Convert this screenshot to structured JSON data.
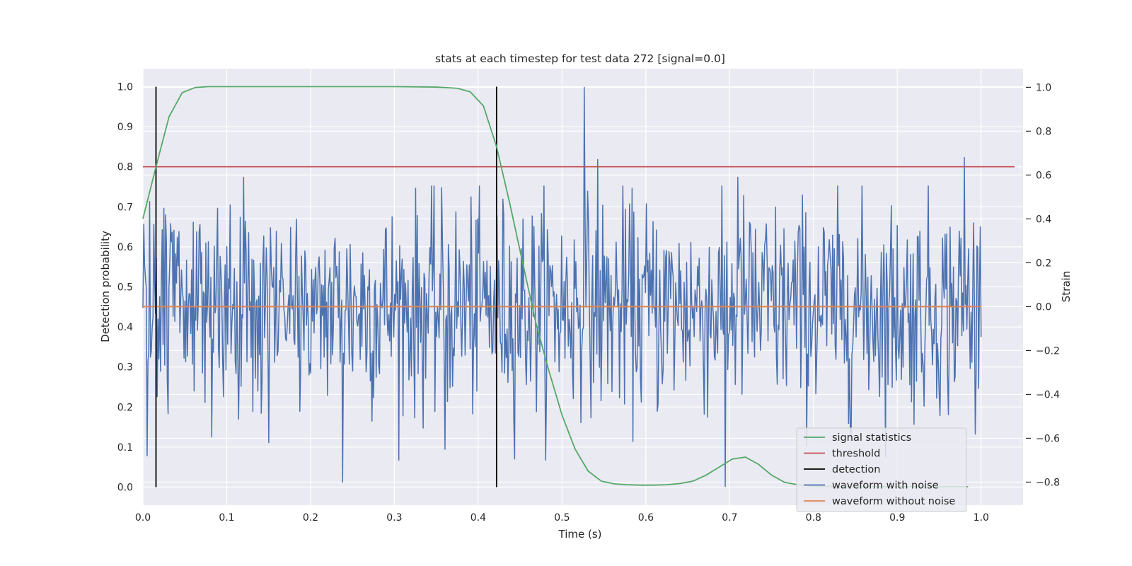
{
  "chart_data": {
    "type": "line",
    "title": "stats at each timestep for test data 272 [signal=0.0]",
    "xlabel": "Time (s)",
    "ylabel": "Detection probability",
    "y2label": "Strain",
    "xlim": [
      0.0,
      1.05
    ],
    "ylim": [
      -0.045,
      1.045
    ],
    "y2lim": [
      -0.905,
      1.085
    ],
    "x_ticks": [
      0.0,
      0.1,
      0.2,
      0.3,
      0.4,
      0.5,
      0.6,
      0.7,
      0.8,
      0.9,
      1.0
    ],
    "x_tick_labels": [
      "0.0",
      "0.1",
      "0.2",
      "0.3",
      "0.4",
      "0.5",
      "0.6",
      "0.7",
      "0.8",
      "0.9",
      "1.0"
    ],
    "y_ticks": [
      0.0,
      0.1,
      0.2,
      0.3,
      0.4,
      0.5,
      0.6,
      0.7,
      0.8,
      0.9,
      1.0
    ],
    "y_tick_labels": [
      "0.0",
      "0.1",
      "0.2",
      "0.3",
      "0.4",
      "0.5",
      "0.6",
      "0.7",
      "0.8",
      "0.9",
      "1.0"
    ],
    "y2_ticks": [
      -0.8,
      -0.6,
      -0.4,
      -0.2,
      0.0,
      0.2,
      0.4,
      0.6,
      0.8,
      1.0
    ],
    "y2_tick_labels": [
      "−0.8",
      "−0.6",
      "−0.4",
      "−0.2",
      "0.0",
      "0.2",
      "0.4",
      "0.6",
      "0.8",
      "1.0"
    ],
    "grid": true,
    "legend_position": "lower-right",
    "background": "#eaeaf2",
    "series": [
      {
        "name": "signal statistics",
        "axis": "left",
        "color": "#55a868",
        "x": [
          0.0,
          0.0156,
          0.0312,
          0.0469,
          0.0625,
          0.0781,
          0.1,
          0.2,
          0.3,
          0.35,
          0.375,
          0.3906,
          0.4062,
          0.4219,
          0.4375,
          0.4531,
          0.4688,
          0.4844,
          0.5,
          0.5156,
          0.5312,
          0.5469,
          0.5625,
          0.5781,
          0.5938,
          0.6094,
          0.625,
          0.6406,
          0.6562,
          0.6719,
          0.6875,
          0.7031,
          0.7188,
          0.7344,
          0.75,
          0.7656,
          0.7812,
          0.7969,
          0.8125,
          0.8281,
          0.8438,
          0.8594,
          0.875,
          0.8906,
          0.9062,
          0.9219,
          0.9375,
          0.9531,
          0.9688,
          0.9844
        ],
        "values": [
          0.67,
          0.8,
          0.925,
          0.985,
          0.998,
          1.0,
          1.0,
          1.0,
          1.0,
          0.999,
          0.996,
          0.987,
          0.952,
          0.85,
          0.71,
          0.56,
          0.41,
          0.29,
          0.18,
          0.095,
          0.04,
          0.015,
          0.008,
          0.006,
          0.005,
          0.005,
          0.006,
          0.009,
          0.015,
          0.03,
          0.05,
          0.07,
          0.075,
          0.057,
          0.03,
          0.012,
          0.006,
          0.003,
          0.002,
          0.001,
          0.001,
          0.001,
          0.001,
          0.001,
          0.001,
          0.001,
          0.001,
          0.001,
          0.001,
          0.001
        ]
      },
      {
        "name": "threshold",
        "axis": "left",
        "color": "#c44e52",
        "x": [
          0.0,
          1.04
        ],
        "values": [
          0.8,
          0.8
        ]
      },
      {
        "name": "detection",
        "axis": "left",
        "color": "#000000",
        "x": [
          0.0156,
          0.4219
        ],
        "values": [
          1.0,
          1.0
        ]
      },
      {
        "name": "waveform with noise",
        "axis": "right",
        "color": "#4c72b0",
        "n": 1000,
        "x_end": 1.0,
        "range": [
          -0.82,
          1.0
        ],
        "peaks": [
          {
            "x": 0.527,
            "value": 1.0
          },
          {
            "x": 0.98,
            "value": 0.68
          },
          {
            "x": 0.543,
            "value": 0.67
          },
          {
            "x": 0.12,
            "value": 0.59
          },
          {
            "x": 0.71,
            "value": 0.59
          },
          {
            "x": 0.695,
            "value": -0.82
          },
          {
            "x": 0.238,
            "value": -0.8
          },
          {
            "x": 0.005,
            "value": -0.68
          },
          {
            "x": 0.36,
            "value": -0.65
          },
          {
            "x": 0.15,
            "value": -0.62
          }
        ]
      },
      {
        "name": "waveform without noise",
        "axis": "right",
        "color": "#dd8452",
        "x": [
          0.0,
          1.0
        ],
        "values": [
          0.0,
          0.0
        ]
      }
    ]
  }
}
